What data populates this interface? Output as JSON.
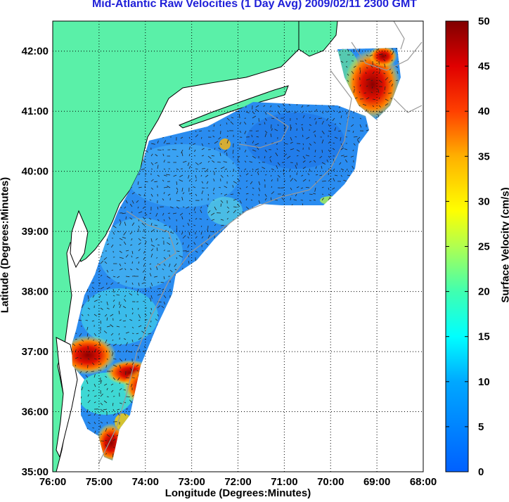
{
  "title": "Mid-Atlantic Raw Velocities (1 Day Avg) 2009/02/11 2300 GMT",
  "xlabel": "Longitude (Degrees:Minutes)",
  "ylabel": "Latitude (Degrees:Minutes)",
  "colorbar_label": "Surface Velocity (cm/s)",
  "x_ticks": [
    "76:00",
    "75:00",
    "74:00",
    "73:00",
    "72:00",
    "71:00",
    "70:00",
    "69:00",
    "68:00"
  ],
  "y_ticks": [
    "42:00",
    "41:00",
    "40:00",
    "39:00",
    "38:00",
    "37:00",
    "36:00",
    "35:00"
  ],
  "colorbar_ticks": [
    "50",
    "45",
    "40",
    "35",
    "30",
    "25",
    "20",
    "15",
    "10",
    "5",
    "0"
  ],
  "colors": {
    "land": "#5af0a8",
    "title": "#1f1fd8",
    "coast": "#000000",
    "bathymetry": "#999999"
  },
  "chart_data": {
    "type": "heatmap",
    "title": "Mid-Atlantic Raw Velocities (1 Day Avg) 2009/02/11 2300 GMT",
    "xlabel": "Longitude (Degrees:Minutes)",
    "ylabel": "Latitude (Degrees:Minutes)",
    "xlim": [
      -76,
      -68
    ],
    "ylim": [
      35,
      42.5
    ],
    "colorbar": {
      "label": "Surface Velocity (cm/s)",
      "range": [
        0,
        50
      ],
      "colormap": "jet"
    },
    "grid": true,
    "hotspots": [
      {
        "lon": -69.2,
        "lat": 41.2,
        "speed": 48
      },
      {
        "lon": -74.2,
        "lat": 36.4,
        "speed": 48
      },
      {
        "lon": -75.1,
        "lat": 36.9,
        "speed": 46
      },
      {
        "lon": -74.6,
        "lat": 36.7,
        "speed": 45
      },
      {
        "lon": -74.9,
        "lat": 35.4,
        "speed": 44
      },
      {
        "lon": -69.4,
        "lat": 41.9,
        "speed": 40
      }
    ]
  }
}
